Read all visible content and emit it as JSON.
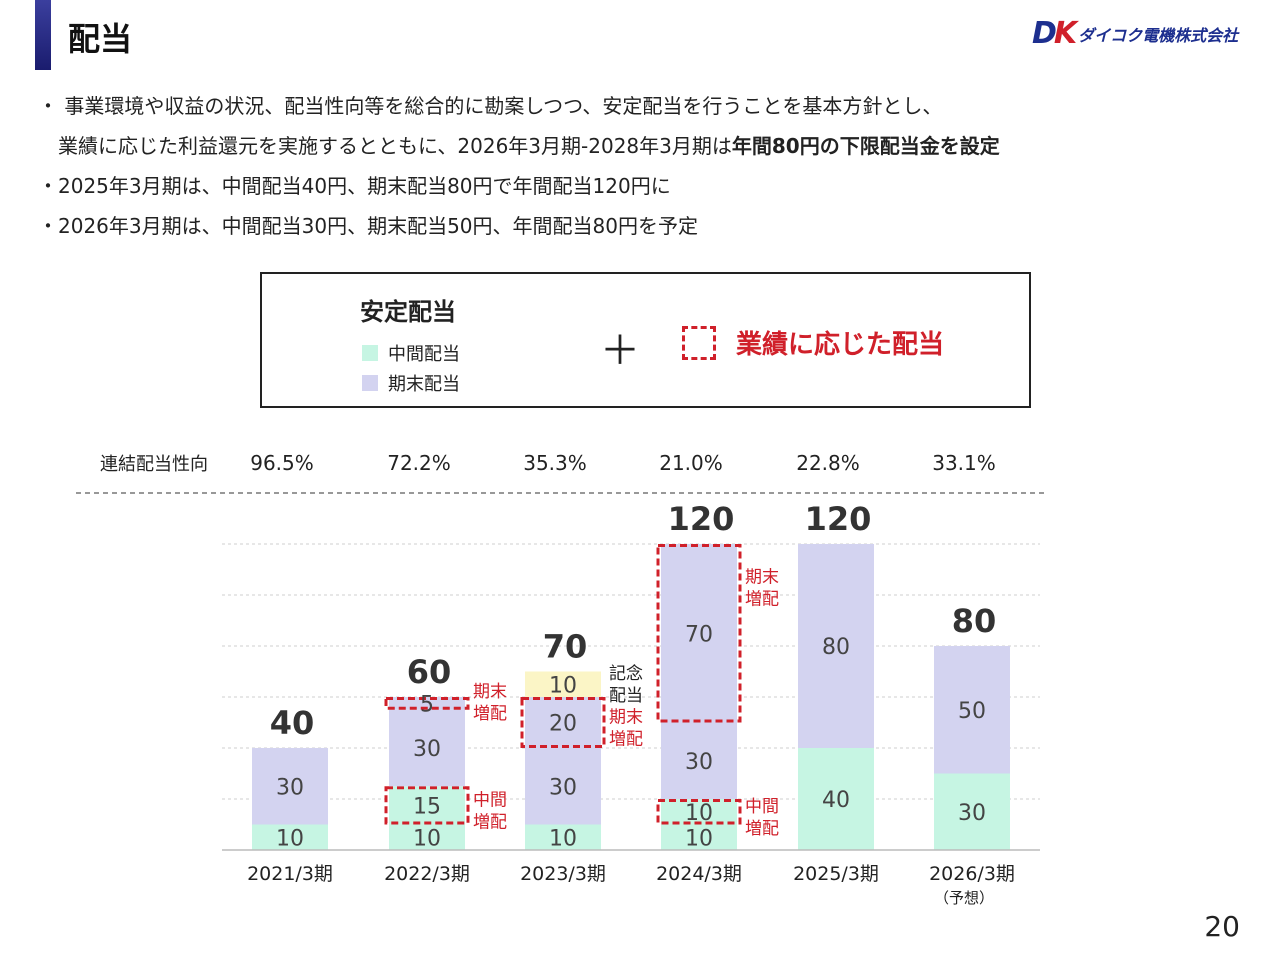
{
  "header": {
    "title": "配当",
    "logo_mark": "DK",
    "logo_text": "ダイコク電機株式会社"
  },
  "bullets": {
    "line1": "・ 事業環境や収益の状況、配当性向等を総合的に勘案しつつ、安定配当を行うことを基本方針とし、",
    "line2_plain": "　業績に応じた利益還元を実施するとともに、2026年3月期-2028年3月期は",
    "line2_bold": "年間80円の下限配当金を設定",
    "line3": "・2025年3月期は、中間配当40円、期末配当80円で年間配当120円に",
    "line4": "・2026年3月期は、中間配当30円、期末配当50円、年間配当80円を予定"
  },
  "legend": {
    "stable_title": "安定配当",
    "interim_label": "中間配当",
    "final_label": "期末配当",
    "plus": "＋",
    "performance_label": "業績に応じた配当"
  },
  "colors": {
    "interim": "#c6f5e3",
    "final": "#d3d3f0",
    "commemorative": "#fbf5c6",
    "performance": "#d0202a"
  },
  "chart_data": {
    "type": "bar",
    "stacked": true,
    "payout_label": "連結配当性向",
    "categories": [
      "2021/3期",
      "2022/3期",
      "2023/3期",
      "2024/3期",
      "2025/3期",
      "2026/3期"
    ],
    "category_notes": [
      "",
      "",
      "",
      "",
      "",
      "（予想）"
    ],
    "payout_ratios": [
      "96.5%",
      "72.2%",
      "35.3%",
      "21.0%",
      "22.8%",
      "33.1%"
    ],
    "totals": [
      40,
      60,
      70,
      120,
      120,
      80
    ],
    "segments": [
      [
        {
          "kind": "interim",
          "value": 10
        },
        {
          "kind": "final",
          "value": 30
        }
      ],
      [
        {
          "kind": "interim",
          "value": 10
        },
        {
          "kind": "interim",
          "value": 15,
          "performance": true
        },
        {
          "kind": "final",
          "value": 30
        },
        {
          "kind": "final",
          "value": 5,
          "performance": true
        }
      ],
      [
        {
          "kind": "interim",
          "value": 10
        },
        {
          "kind": "final",
          "value": 30
        },
        {
          "kind": "final",
          "value": 20,
          "performance": true
        },
        {
          "kind": "commemorative",
          "value": 10
        }
      ],
      [
        {
          "kind": "interim",
          "value": 10
        },
        {
          "kind": "interim",
          "value": 10,
          "performance": true
        },
        {
          "kind": "final",
          "value": 30
        },
        {
          "kind": "final",
          "value": 70,
          "performance": true
        }
      ],
      [
        {
          "kind": "interim",
          "value": 40
        },
        {
          "kind": "final",
          "value": 80
        }
      ],
      [
        {
          "kind": "interim",
          "value": 30
        },
        {
          "kind": "final",
          "value": 50
        }
      ]
    ],
    "annotations": [
      {
        "category": "2022/3期",
        "text": [
          "期末",
          "増配"
        ],
        "color": "#d0202a",
        "value_level": 60
      },
      {
        "category": "2022/3期",
        "text": [
          "中間",
          "増配"
        ],
        "color": "#d0202a",
        "value_level": 17.5
      },
      {
        "category": "2023/3期",
        "text": [
          "記念",
          "配当"
        ],
        "color": "#222222",
        "value_level": 67
      },
      {
        "category": "2023/3期",
        "text": [
          "期末",
          "増配"
        ],
        "color": "#d0202a",
        "value_level": 50
      },
      {
        "category": "2024/3期",
        "text": [
          "期末",
          "増配"
        ],
        "color": "#d0202a",
        "value_level": 105
      },
      {
        "category": "2024/3期",
        "text": [
          "中間",
          "増配"
        ],
        "color": "#d0202a",
        "value_level": 15
      }
    ],
    "ylim": [
      0,
      120
    ],
    "grid": true
  },
  "page_number": "20"
}
